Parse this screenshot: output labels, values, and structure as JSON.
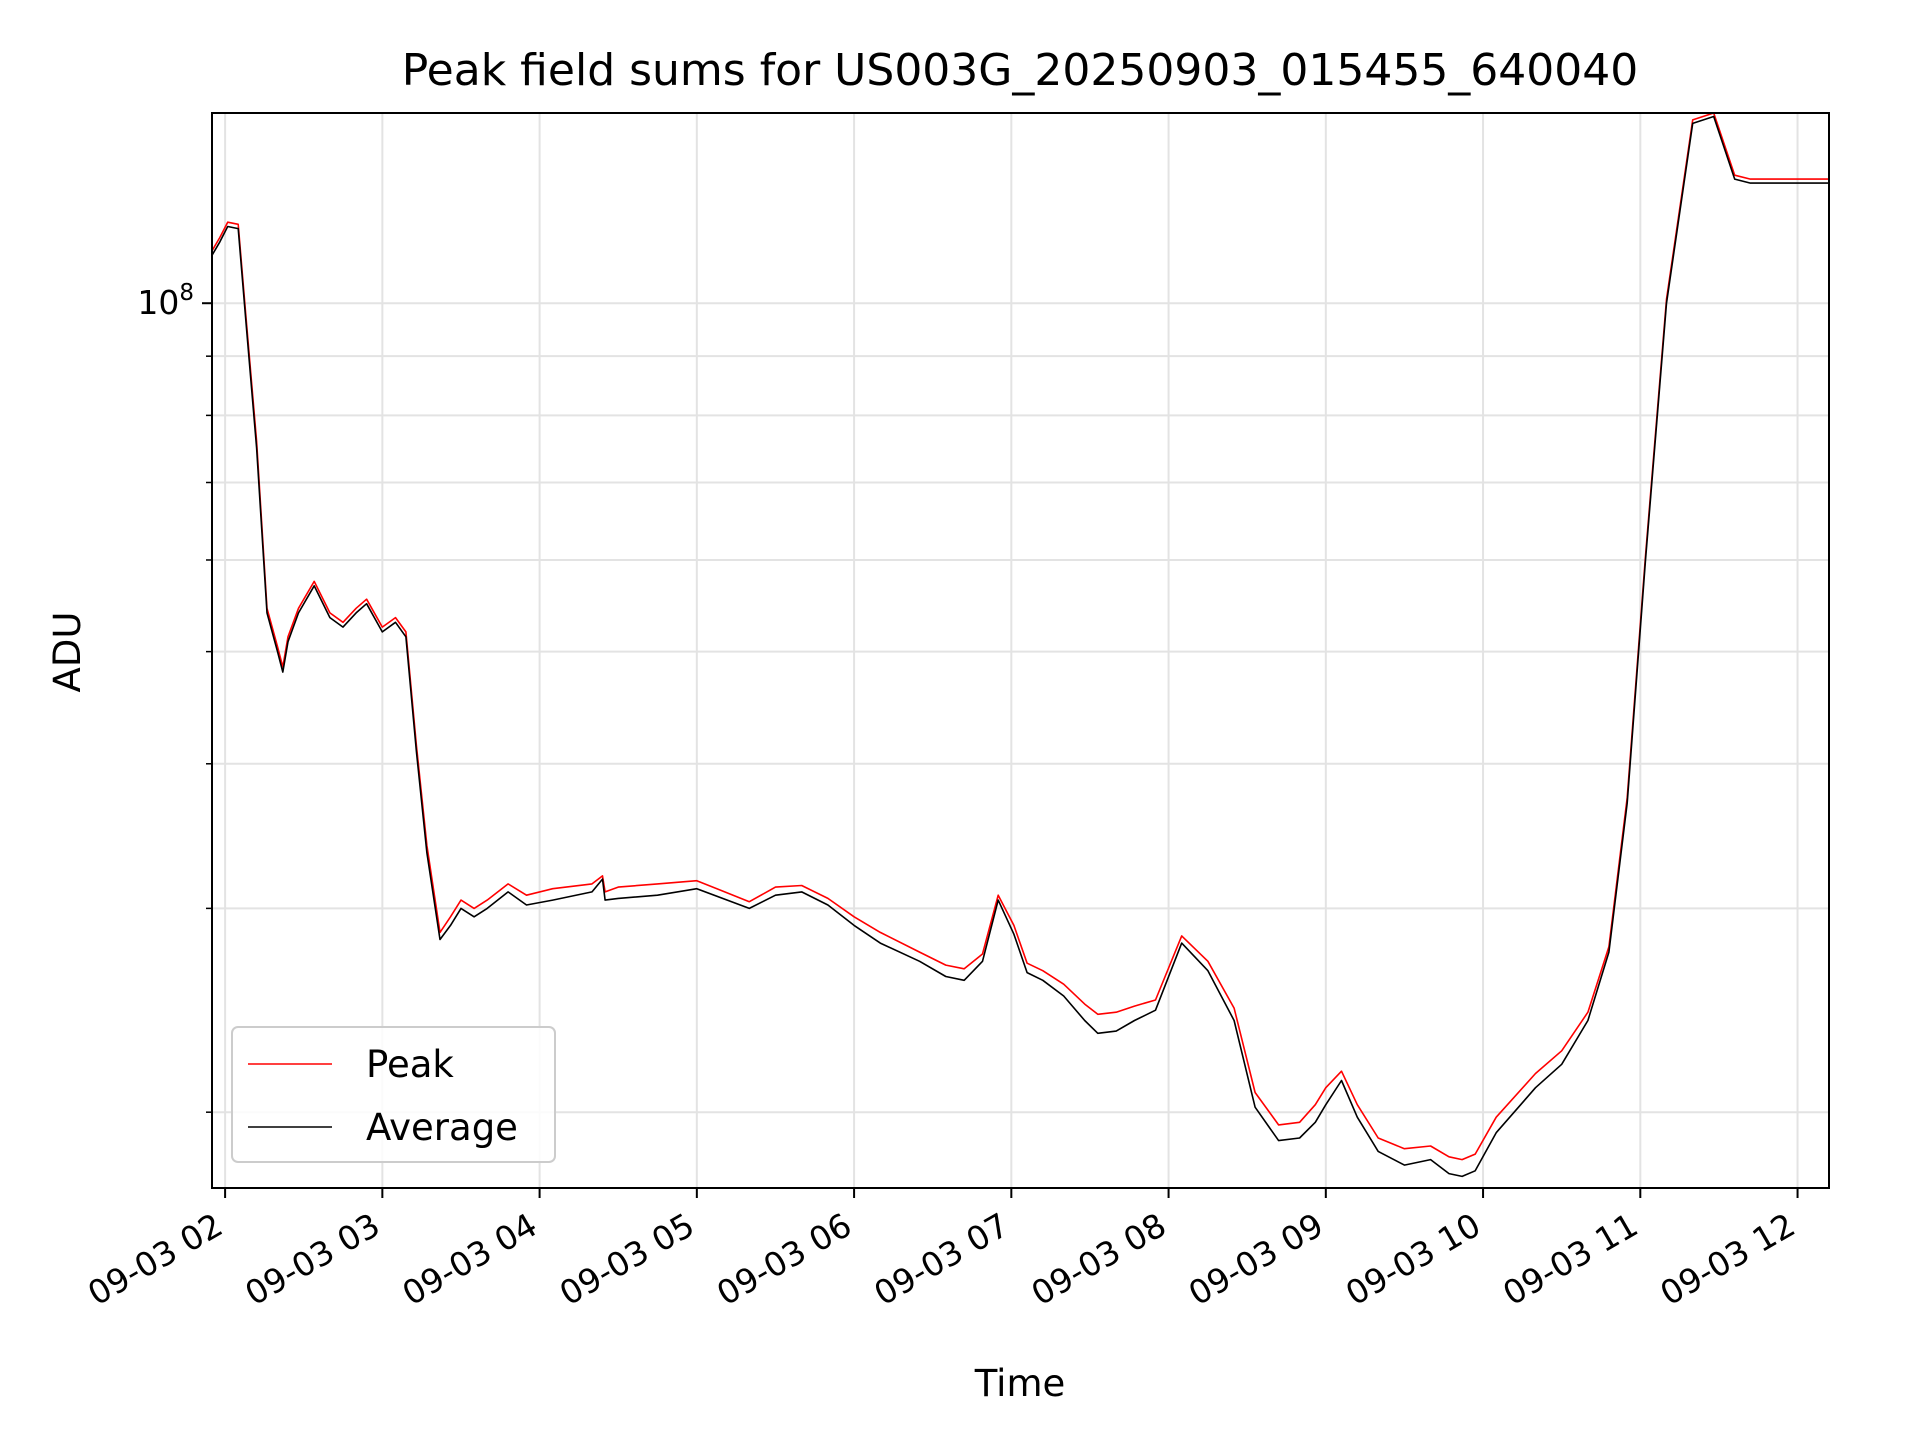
{
  "chart_data": {
    "type": "line",
    "title": "Peak field sums for US003G_20250903_015455_640040",
    "xlabel": "Time",
    "ylabel": "ADU",
    "yscale": "log",
    "ylim": [
      17200000,
      146000000
    ],
    "xlim": [
      "2025-09-03 01:55",
      "2025-09-03 12:12"
    ],
    "grid": true,
    "legend_position": "lower-left",
    "x_ticks": [
      "09-03 02",
      "09-03 03",
      "09-03 04",
      "09-03 05",
      "09-03 06",
      "09-03 07",
      "09-03 08",
      "09-03 09",
      "09-03 10",
      "09-03 11",
      "09-03 12"
    ],
    "y_major_ticks": [
      {
        "value": 100000000,
        "base": "10",
        "exponent": "8"
      }
    ],
    "y_minor_ticks": [
      20000000,
      30000000,
      40000000,
      50000000,
      60000000,
      70000000,
      80000000,
      90000000
    ],
    "legend": [
      "Peak",
      "Average"
    ],
    "colors": {
      "Peak": "#ff0000",
      "Average": "#000000"
    },
    "series": [
      {
        "name": "Average",
        "x": [
          "2025-09-03 01:55",
          "2025-09-03 01:58",
          "2025-09-03 02:01",
          "2025-09-03 02:05",
          "2025-09-03 02:08",
          "2025-09-03 02:12",
          "2025-09-03 02:16",
          "2025-09-03 02:20",
          "2025-09-03 02:22",
          "2025-09-03 02:24",
          "2025-09-03 02:28",
          "2025-09-03 02:34",
          "2025-09-03 02:40",
          "2025-09-03 02:45",
          "2025-09-03 02:50",
          "2025-09-03 02:54",
          "2025-09-03 03:00",
          "2025-09-03 03:05",
          "2025-09-03 03:09",
          "2025-09-03 03:13",
          "2025-09-03 03:17",
          "2025-09-03 03:22",
          "2025-09-03 03:26",
          "2025-09-03 03:30",
          "2025-09-03 03:35",
          "2025-09-03 03:40",
          "2025-09-03 03:48",
          "2025-09-03 03:55",
          "2025-09-03 04:05",
          "2025-09-03 04:20",
          "2025-09-03 04:24",
          "2025-09-03 04:25",
          "2025-09-03 04:30",
          "2025-09-03 04:45",
          "2025-09-03 05:00",
          "2025-09-03 05:20",
          "2025-09-03 05:30",
          "2025-09-03 05:40",
          "2025-09-03 05:50",
          "2025-09-03 06:00",
          "2025-09-03 06:10",
          "2025-09-03 06:25",
          "2025-09-03 06:35",
          "2025-09-03 06:42",
          "2025-09-03 06:49",
          "2025-09-03 06:55",
          "2025-09-03 07:01",
          "2025-09-03 07:06",
          "2025-09-03 07:12",
          "2025-09-03 07:20",
          "2025-09-03 07:28",
          "2025-09-03 07:33",
          "2025-09-03 07:40",
          "2025-09-03 07:47",
          "2025-09-03 07:55",
          "2025-09-03 08:05",
          "2025-09-03 08:15",
          "2025-09-03 08:25",
          "2025-09-03 08:33",
          "2025-09-03 08:42",
          "2025-09-03 08:50",
          "2025-09-03 08:56",
          "2025-09-03 09:00",
          "2025-09-03 09:06",
          "2025-09-03 09:12",
          "2025-09-03 09:20",
          "2025-09-03 09:30",
          "2025-09-03 09:40",
          "2025-09-03 09:47",
          "2025-09-03 09:52",
          "2025-09-03 09:57",
          "2025-09-03 10:05",
          "2025-09-03 10:20",
          "2025-09-03 10:30",
          "2025-09-03 10:40",
          "2025-09-03 10:48",
          "2025-09-03 10:55",
          "2025-09-03 11:02",
          "2025-09-03 11:10",
          "2025-09-03 11:20",
          "2025-09-03 11:28",
          "2025-09-03 11:36",
          "2025-09-03 11:42",
          "2025-09-03 11:47",
          "2025-09-03 11:52",
          "2025-09-03 11:58",
          "2025-09-03 12:00",
          "2025-09-03 12:04",
          "2025-09-03 12:06",
          "2025-09-03 12:09",
          "2025-09-03 12:12"
        ],
        "values": [
          110000000,
          113000000,
          116500000,
          116000000,
          96000000,
          75000000,
          54000000,
          50000000,
          48000000,
          51000000,
          54000000,
          57000000,
          53500000,
          52500000,
          54000000,
          55000000,
          52000000,
          53000000,
          51500000,
          41000000,
          33500000,
          28200000,
          29000000,
          30000000,
          29500000,
          30000000,
          31000000,
          30200000,
          30500000,
          31000000,
          31800000,
          30500000,
          30600000,
          30800000,
          31200000,
          30000000,
          30800000,
          31000000,
          30200000,
          29000000,
          28000000,
          27000000,
          26200000,
          26000000,
          27000000,
          30500000,
          28500000,
          26400000,
          26000000,
          25200000,
          24000000,
          23400000,
          23500000,
          24000000,
          24500000,
          28000000,
          26500000,
          24000000,
          20200000,
          18900000,
          19000000,
          19600000,
          20300000,
          21300000,
          19800000,
          18500000,
          18000000,
          18200000,
          17700000,
          17600000,
          17800000,
          19200000,
          21000000,
          22000000,
          24000000,
          27500000,
          37000000,
          60000000,
          100000000,
          143000000,
          145000000,
          128000000,
          127000000,
          127000000,
          127000000,
          127000000,
          127000000,
          127000000,
          127000000,
          127000000,
          127000000
        ]
      },
      {
        "name": "Peak",
        "x": [
          "2025-09-03 01:55",
          "2025-09-03 01:58",
          "2025-09-03 02:01",
          "2025-09-03 02:05",
          "2025-09-03 02:08",
          "2025-09-03 02:12",
          "2025-09-03 02:16",
          "2025-09-03 02:20",
          "2025-09-03 02:22",
          "2025-09-03 02:24",
          "2025-09-03 02:28",
          "2025-09-03 02:34",
          "2025-09-03 02:40",
          "2025-09-03 02:45",
          "2025-09-03 02:50",
          "2025-09-03 02:54",
          "2025-09-03 03:00",
          "2025-09-03 03:05",
          "2025-09-03 03:09",
          "2025-09-03 03:13",
          "2025-09-03 03:17",
          "2025-09-03 03:22",
          "2025-09-03 03:26",
          "2025-09-03 03:30",
          "2025-09-03 03:35",
          "2025-09-03 03:40",
          "2025-09-03 03:48",
          "2025-09-03 03:55",
          "2025-09-03 04:05",
          "2025-09-03 04:20",
          "2025-09-03 04:24",
          "2025-09-03 04:25",
          "2025-09-03 04:30",
          "2025-09-03 04:45",
          "2025-09-03 05:00",
          "2025-09-03 05:20",
          "2025-09-03 05:30",
          "2025-09-03 05:40",
          "2025-09-03 05:50",
          "2025-09-03 06:00",
          "2025-09-03 06:10",
          "2025-09-03 06:25",
          "2025-09-03 06:35",
          "2025-09-03 06:42",
          "2025-09-03 06:49",
          "2025-09-03 06:55",
          "2025-09-03 07:01",
          "2025-09-03 07:06",
          "2025-09-03 07:12",
          "2025-09-03 07:20",
          "2025-09-03 07:28",
          "2025-09-03 07:33",
          "2025-09-03 07:40",
          "2025-09-03 07:47",
          "2025-09-03 07:55",
          "2025-09-03 08:05",
          "2025-09-03 08:15",
          "2025-09-03 08:25",
          "2025-09-03 08:33",
          "2025-09-03 08:42",
          "2025-09-03 08:50",
          "2025-09-03 08:56",
          "2025-09-03 09:00",
          "2025-09-03 09:06",
          "2025-09-03 09:12",
          "2025-09-03 09:20",
          "2025-09-03 09:30",
          "2025-09-03 09:40",
          "2025-09-03 09:47",
          "2025-09-03 09:52",
          "2025-09-03 09:57",
          "2025-09-03 10:05",
          "2025-09-03 10:20",
          "2025-09-03 10:30",
          "2025-09-03 10:40",
          "2025-09-03 10:48",
          "2025-09-03 10:55",
          "2025-09-03 11:02",
          "2025-09-03 11:10",
          "2025-09-03 11:20",
          "2025-09-03 11:28",
          "2025-09-03 11:36",
          "2025-09-03 11:42",
          "2025-09-03 11:47",
          "2025-09-03 11:52",
          "2025-09-03 11:58",
          "2025-09-03 12:00",
          "2025-09-03 12:04",
          "2025-09-03 12:06",
          "2025-09-03 12:09",
          "2025-09-03 12:12"
        ],
        "values": [
          111000000,
          114000000,
          117500000,
          117000000,
          97000000,
          76000000,
          54500000,
          50500000,
          48500000,
          51500000,
          54500000,
          57500000,
          54000000,
          53000000,
          54500000,
          55500000,
          52500000,
          53500000,
          52000000,
          41500000,
          34000000,
          28600000,
          29500000,
          30500000,
          30000000,
          30500000,
          31500000,
          30800000,
          31200000,
          31500000,
          32000000,
          31000000,
          31300000,
          31500000,
          31700000,
          30400000,
          31300000,
          31400000,
          30600000,
          29500000,
          28600000,
          27500000,
          26800000,
          26600000,
          27400000,
          30800000,
          29000000,
          26900000,
          26500000,
          25800000,
          24800000,
          24300000,
          24400000,
          24700000,
          25000000,
          28400000,
          27000000,
          24600000,
          20800000,
          19500000,
          19600000,
          20300000,
          21000000,
          21700000,
          20300000,
          19000000,
          18600000,
          18700000,
          18300000,
          18200000,
          18400000,
          19800000,
          21600000,
          22600000,
          24400000,
          27800000,
          37400000,
          60500000,
          100800000,
          144000000,
          146000000,
          129000000,
          128000000,
          128000000,
          128000000,
          128000000,
          128000000,
          128000000,
          128000000,
          128000000,
          128000000
        ]
      }
    ]
  }
}
